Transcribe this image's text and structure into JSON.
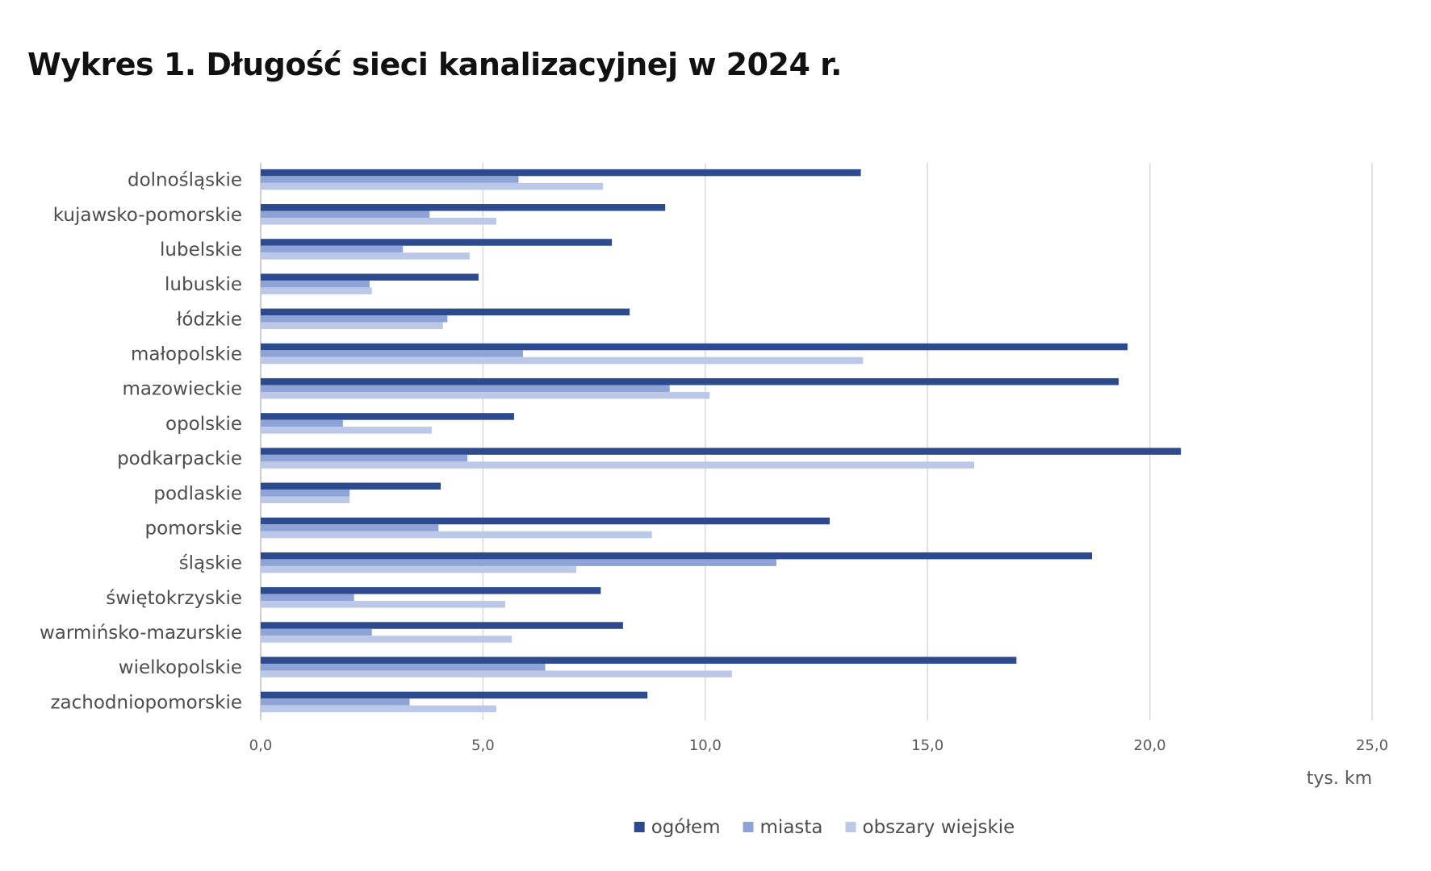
{
  "chart_data": {
    "type": "bar",
    "orientation": "horizontal",
    "title": "Wykres 1. Długość sieci kanalizacyjnej w 2024 r.",
    "xlabel": "tys. km",
    "ylabel": "",
    "xlim": [
      0,
      25
    ],
    "x_ticks": [
      0,
      5,
      10,
      15,
      20,
      25
    ],
    "x_tick_labels": [
      "0,0",
      "5,0",
      "10,0",
      "15,0",
      "20,0",
      "25,0"
    ],
    "grid": true,
    "legend_position": "bottom",
    "categories": [
      "dolnośląskie",
      "kujawsko-pomorskie",
      "lubelskie",
      "lubuskie",
      "łódzkie",
      "małopolskie",
      "mazowieckie",
      "opolskie",
      "podkarpackie",
      "podlaskie",
      "pomorskie",
      "śląskie",
      "świętokrzyskie",
      "warmińsko-mazurskie",
      "wielkopolskie",
      "zachodniopomorskie"
    ],
    "series": [
      {
        "name": "ogółem",
        "color": "#2e4a8e",
        "values": [
          13.5,
          9.1,
          7.9,
          4.9,
          8.3,
          19.5,
          19.3,
          5.7,
          20.7,
          4.05,
          12.8,
          18.7,
          7.65,
          8.15,
          17.0,
          8.7
        ]
      },
      {
        "name": "miasta",
        "color": "#8ea3d6",
        "values": [
          5.8,
          3.8,
          3.2,
          2.45,
          4.2,
          5.9,
          9.2,
          1.85,
          4.65,
          2.0,
          4.0,
          11.6,
          2.1,
          2.5,
          6.4,
          3.35
        ]
      },
      {
        "name": "obszary wiejskie",
        "color": "#bcc8e8",
        "values": [
          7.7,
          5.3,
          4.7,
          2.5,
          4.1,
          13.55,
          10.1,
          3.85,
          16.05,
          2.0,
          8.8,
          7.1,
          5.5,
          5.65,
          10.6,
          5.3
        ]
      }
    ]
  }
}
